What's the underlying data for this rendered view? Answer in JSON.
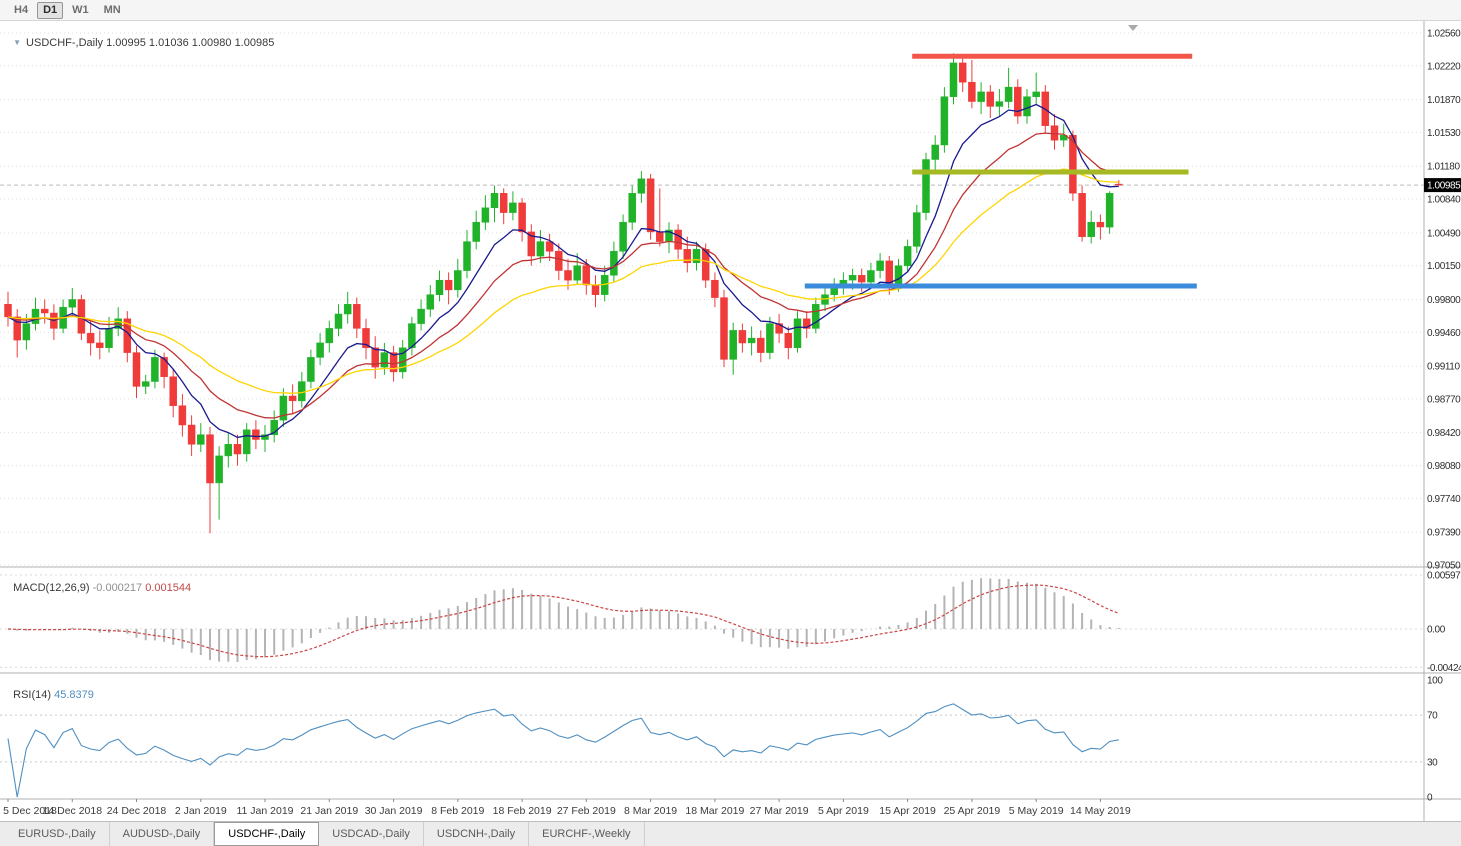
{
  "toolbar": {
    "timeframes": [
      {
        "label": "H4",
        "active": false
      },
      {
        "label": "D1",
        "active": true
      },
      {
        "label": "W1",
        "active": false
      },
      {
        "label": "MN",
        "active": false
      }
    ]
  },
  "chart": {
    "title": "USDCHF-,Daily",
    "ohlc_display": "1.00995 1.01036 1.00980 1.00985",
    "bid_label": "1.00985",
    "price_axis": [
      "1.02560",
      "1.02220",
      "1.01870",
      "1.01530",
      "1.01180",
      "1.00840",
      "1.00490",
      "1.00150",
      "0.99800",
      "0.99460",
      "0.99110",
      "0.98770",
      "0.98420",
      "0.98080",
      "0.97740",
      "0.97390",
      "0.97050"
    ],
    "date_axis": [
      "5 Dec 2018",
      "14 Dec 2018",
      "24 Dec 2018",
      "2 Jan 2019",
      "11 Jan 2019",
      "21 Jan 2019",
      "30 Jan 2019",
      "8 Feb 2019",
      "18 Feb 2019",
      "27 Feb 2019",
      "8 Mar 2019",
      "18 Mar 2019",
      "27 Mar 2019",
      "5 Apr 2019",
      "15 Apr 2019",
      "25 Apr 2019",
      "5 May 2019",
      "14 May 2019"
    ],
    "label_step": 7,
    "candles": [
      [
        0.9975,
        0.9988,
        0.9952,
        0.9962
      ],
      [
        0.9962,
        0.997,
        0.992,
        0.9938
      ],
      [
        0.9938,
        0.9965,
        0.9928,
        0.9955
      ],
      [
        0.9955,
        0.9982,
        0.9948,
        0.997
      ],
      [
        0.997,
        0.998,
        0.9955,
        0.9966
      ],
      [
        0.9966,
        0.9975,
        0.9938,
        0.995
      ],
      [
        0.995,
        0.998,
        0.9945,
        0.9972
      ],
      [
        0.9972,
        0.9992,
        0.9962,
        0.998
      ],
      [
        0.998,
        0.9985,
        0.9938,
        0.9945
      ],
      [
        0.9945,
        0.9958,
        0.9922,
        0.9935
      ],
      [
        0.9935,
        0.9948,
        0.9918,
        0.993
      ],
      [
        0.993,
        0.9962,
        0.9925,
        0.995
      ],
      [
        0.995,
        0.9972,
        0.9942,
        0.996
      ],
      [
        0.996,
        0.9968,
        0.9915,
        0.9925
      ],
      [
        0.9925,
        0.9932,
        0.9878,
        0.989
      ],
      [
        0.989,
        0.9902,
        0.9882,
        0.9895
      ],
      [
        0.9895,
        0.9928,
        0.9888,
        0.992
      ],
      [
        0.992,
        0.9925,
        0.9888,
        0.99
      ],
      [
        0.99,
        0.9908,
        0.9858,
        0.987
      ],
      [
        0.987,
        0.9882,
        0.9838,
        0.985
      ],
      [
        0.985,
        0.986,
        0.9818,
        0.983
      ],
      [
        0.983,
        0.9852,
        0.9822,
        0.984
      ],
      [
        0.984,
        0.9848,
        0.9738,
        0.979
      ],
      [
        0.979,
        0.9828,
        0.9752,
        0.9818
      ],
      [
        0.9818,
        0.9842,
        0.9806,
        0.983
      ],
      [
        0.983,
        0.984,
        0.9808,
        0.982
      ],
      [
        0.982,
        0.9852,
        0.9812,
        0.9845
      ],
      [
        0.9845,
        0.9855,
        0.9825,
        0.9835
      ],
      [
        0.9835,
        0.985,
        0.9822,
        0.984
      ],
      [
        0.984,
        0.9865,
        0.9832,
        0.9855
      ],
      [
        0.9855,
        0.9888,
        0.9848,
        0.988
      ],
      [
        0.988,
        0.9892,
        0.9862,
        0.9875
      ],
      [
        0.9875,
        0.9905,
        0.9868,
        0.9895
      ],
      [
        0.9895,
        0.9928,
        0.9888,
        0.992
      ],
      [
        0.992,
        0.9945,
        0.9912,
        0.9935
      ],
      [
        0.9935,
        0.9958,
        0.9925,
        0.995
      ],
      [
        0.995,
        0.9975,
        0.9942,
        0.9965
      ],
      [
        0.9965,
        0.9988,
        0.9955,
        0.9975
      ],
      [
        0.9975,
        0.9982,
        0.994,
        0.995
      ],
      [
        0.995,
        0.996,
        0.9918,
        0.993
      ],
      [
        0.993,
        0.9942,
        0.9898,
        0.991
      ],
      [
        0.991,
        0.9935,
        0.9902,
        0.9925
      ],
      [
        0.9925,
        0.9932,
        0.9895,
        0.9905
      ],
      [
        0.9905,
        0.9938,
        0.9898,
        0.993
      ],
      [
        0.993,
        0.9962,
        0.9922,
        0.9955
      ],
      [
        0.9955,
        0.998,
        0.9948,
        0.997
      ],
      [
        0.997,
        0.9995,
        0.9962,
        0.9985
      ],
      [
        0.9985,
        1.001,
        0.9978,
        1.0
      ],
      [
        1.0,
        1.0008,
        0.9975,
        0.999
      ],
      [
        0.999,
        1.0022,
        0.9982,
        1.001
      ],
      [
        1.001,
        1.0052,
        1.0002,
        1.004
      ],
      [
        1.004,
        1.0072,
        1.0032,
        1.006
      ],
      [
        1.006,
        1.0088,
        1.0052,
        1.0075
      ],
      [
        1.0075,
        1.0098,
        1.006,
        1.009
      ],
      [
        1.009,
        1.0095,
        1.0058,
        1.007
      ],
      [
        1.007,
        1.0092,
        1.0062,
        1.008
      ],
      [
        1.008,
        1.0085,
        1.004,
        1.005
      ],
      [
        1.005,
        1.0058,
        1.0015,
        1.0025
      ],
      [
        1.0025,
        1.0052,
        1.0018,
        1.004
      ],
      [
        1.004,
        1.0048,
        1.002,
        1.003
      ],
      [
        1.003,
        1.0038,
        1.0,
        1.001
      ],
      [
        1.001,
        1.0022,
        0.999,
        1.0
      ],
      [
        1.0,
        1.0028,
        0.9995,
        1.0015
      ],
      [
        1.0015,
        1.0022,
        0.9985,
        0.9995
      ],
      [
        0.9995,
        1.0005,
        0.9972,
        0.9985
      ],
      [
        0.9985,
        1.0015,
        0.9978,
        1.0005
      ],
      [
        1.0005,
        1.004,
        0.9998,
        1.003
      ],
      [
        1.003,
        1.0068,
        1.0022,
        1.006
      ],
      [
        1.006,
        1.0098,
        1.0052,
        1.009
      ],
      [
        1.009,
        1.0113,
        1.008,
        1.0105
      ],
      [
        1.0105,
        1.011,
        1.0042,
        1.005
      ],
      [
        1.005,
        1.0095,
        1.0035,
        1.004
      ],
      [
        1.004,
        1.006,
        1.0028,
        1.0052
      ],
      [
        1.0052,
        1.0058,
        1.0022,
        1.0032
      ],
      [
        1.0032,
        1.0045,
        1.0008,
        1.0018
      ],
      [
        1.0018,
        1.004,
        1.001,
        1.0032
      ],
      [
        1.0032,
        1.0038,
        0.9992,
        1.0
      ],
      [
        1.0,
        1.0008,
        0.9972,
        0.9982
      ],
      [
        0.9982,
        0.999,
        0.991,
        0.9918
      ],
      [
        0.9918,
        0.9956,
        0.9902,
        0.9948
      ],
      [
        0.9948,
        0.9955,
        0.9925,
        0.9935
      ],
      [
        0.9935,
        0.9952,
        0.9922,
        0.994
      ],
      [
        0.994,
        0.9948,
        0.9915,
        0.9925
      ],
      [
        0.9925,
        0.9962,
        0.9918,
        0.9955
      ],
      [
        0.9955,
        0.9965,
        0.9935,
        0.9945
      ],
      [
        0.9945,
        0.9952,
        0.9918,
        0.993
      ],
      [
        0.993,
        0.9968,
        0.9925,
        0.996
      ],
      [
        0.996,
        0.9968,
        0.994,
        0.995
      ],
      [
        0.995,
        0.9982,
        0.9945,
        0.9975
      ],
      [
        0.9975,
        0.9995,
        0.9968,
        0.9985
      ],
      [
        0.9985,
        1.0002,
        0.9978,
        0.9995
      ],
      [
        0.9995,
        1.0008,
        0.9985,
        1.0
      ],
      [
        1.0,
        1.0012,
        0.999,
        1.0005
      ],
      [
        1.0005,
        1.0012,
        0.9988,
        0.9998
      ],
      [
        0.9998,
        1.0018,
        0.9992,
        1.001
      ],
      [
        1.001,
        1.0028,
        1.0002,
        1.002
      ],
      [
        1.002,
        1.0025,
        0.9985,
        0.9995
      ],
      [
        0.9995,
        1.0022,
        0.9988,
        1.0015
      ],
      [
        1.0015,
        1.0042,
        1.0008,
        1.0035
      ],
      [
        1.0035,
        1.0078,
        1.0028,
        1.007
      ],
      [
        1.007,
        1.0132,
        1.0062,
        1.0125
      ],
      [
        1.0125,
        1.015,
        1.0112,
        1.014
      ],
      [
        1.014,
        1.02,
        1.0132,
        1.019
      ],
      [
        1.019,
        1.0235,
        1.0182,
        1.0225
      ],
      [
        1.0225,
        1.0232,
        1.0195,
        1.0205
      ],
      [
        1.0205,
        1.0228,
        1.0178,
        1.0185
      ],
      [
        1.0185,
        1.0205,
        1.0172,
        1.0195
      ],
      [
        1.0195,
        1.0202,
        1.0168,
        1.018
      ],
      [
        1.018,
        1.0198,
        1.017,
        1.0185
      ],
      [
        1.0185,
        1.022,
        1.0178,
        1.02
      ],
      [
        1.02,
        1.0208,
        1.0162,
        1.017
      ],
      [
        1.017,
        1.0198,
        1.0162,
        1.019
      ],
      [
        1.019,
        1.0215,
        1.0182,
        1.0195
      ],
      [
        1.0195,
        1.0202,
        1.0152,
        1.016
      ],
      [
        1.016,
        1.0172,
        1.0135,
        1.0145
      ],
      [
        1.0145,
        1.0162,
        1.0138,
        1.015
      ],
      [
        1.015,
        1.0155,
        1.0082,
        1.009
      ],
      [
        1.009,
        1.0098,
        1.004,
        1.0045
      ],
      [
        1.0045,
        1.0072,
        1.0038,
        1.006
      ],
      [
        1.006,
        1.0068,
        1.0042,
        1.0055
      ],
      [
        1.0055,
        1.0092,
        1.0048,
        1.009
      ],
      [
        1.00995,
        1.01036,
        1.0098,
        1.00985
      ]
    ],
    "moving_averages": [
      {
        "name": "ma-fast",
        "period": 8,
        "color": "#1a1a8e"
      },
      {
        "name": "ma-mid",
        "period": 16,
        "color": "#bf3434"
      },
      {
        "name": "ma-slow",
        "period": 30,
        "color": "#ffd400"
      }
    ],
    "lines": [
      {
        "name": "resistance-line",
        "price": 1.0232,
        "bar_start": 98.5,
        "bar_end": 129.0,
        "color": "#f4554a",
        "width": 5
      },
      {
        "name": "breakout-line",
        "price": 1.0112,
        "bar_start": 98.5,
        "bar_end": 128.6,
        "color": "#a6b822",
        "width": 5
      },
      {
        "name": "support-line",
        "price": 0.9994,
        "bar_start": 86.8,
        "bar_end": 129.5,
        "color": "#3b8bdd",
        "width": 5
      }
    ],
    "colors": {
      "up": "#20b32a",
      "down": "#f03b3b",
      "grid": "#dedede",
      "bid_line": "#bbbbbb",
      "axis_text": "#2e2e2e",
      "panel_border": "#b0b0b0",
      "bid_tag_bg": "#000000",
      "bid_tag_text": "#ffffff"
    }
  },
  "macd": {
    "label": "MACD(12,26,9)",
    "main_value": "-0.000217",
    "signal_value": "0.001544",
    "axis": [
      "0.00597",
      "0.00",
      "-0.00424"
    ],
    "fast": 12,
    "slow": 26,
    "signal": 9,
    "hist_color": "#b4b4b4",
    "signal_color": "#cc4545"
  },
  "rsi": {
    "label": "RSI(14)",
    "value": "45.8379",
    "axis": [
      "100",
      "70",
      "30",
      "0"
    ],
    "levels": [
      70,
      30
    ],
    "period": 14,
    "line_color": "#4f8fc0"
  },
  "tabs": [
    {
      "label": "EURUSD-,Daily",
      "active": false
    },
    {
      "label": "AUDUSD-,Daily",
      "active": false
    },
    {
      "label": "USDCHF-,Daily",
      "active": true
    },
    {
      "label": "USDCAD-,Daily",
      "active": false
    },
    {
      "label": "USDCNH-,Daily",
      "active": false
    },
    {
      "label": "EURCHF-,Weekly",
      "active": false
    }
  ]
}
